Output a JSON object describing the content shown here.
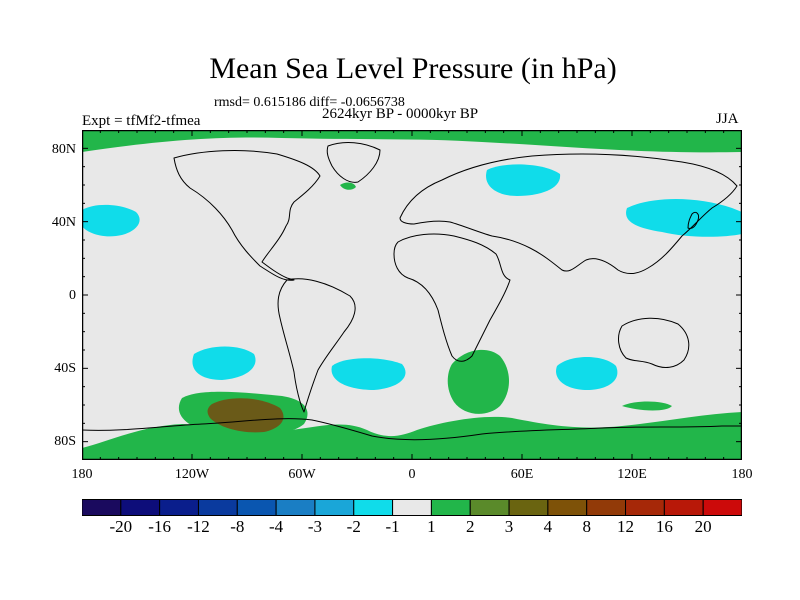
{
  "figure": {
    "title": "Mean Sea Level Pressure (in hPa)",
    "stats": "rmsd= 0.615186 diff= -0.0656738",
    "period": "2624kyr BP - 0000kyr BP",
    "experiment": "Expt = tfMf2-tfmea",
    "season": "JJA"
  },
  "axes": {
    "y_ticks": [
      "80N",
      "40N",
      "0",
      "40S",
      "80S"
    ],
    "x_ticks": [
      "180",
      "120W",
      "60W",
      "0",
      "60E",
      "120E",
      "180"
    ],
    "lon_range": [
      -180,
      180
    ],
    "lat_range": [
      -90,
      90
    ]
  },
  "colorbar": {
    "labels": [
      "-20",
      "-16",
      "-12",
      "-8",
      "-4",
      "-3",
      "-2",
      "-1",
      "1",
      "2",
      "3",
      "4",
      "8",
      "12",
      "16",
      "20"
    ],
    "colors": [
      "#1a0a5e",
      "#0d0d7a",
      "#0a1e8c",
      "#0a3a9e",
      "#0a56b0",
      "#1a7ec4",
      "#1aa6d8",
      "#10dcea",
      "#e8e8e8",
      "#22b64a",
      "#5a8a2a",
      "#6a6410",
      "#7e5208",
      "#923a08",
      "#a62808",
      "#b81808",
      "#cc0a0a"
    ]
  },
  "colors": {
    "background_fill": "#e8e8e8",
    "negative_anomaly": "#10dcea",
    "positive_anomaly": "#22b64a",
    "strong_positive": "#6a5a18"
  }
}
